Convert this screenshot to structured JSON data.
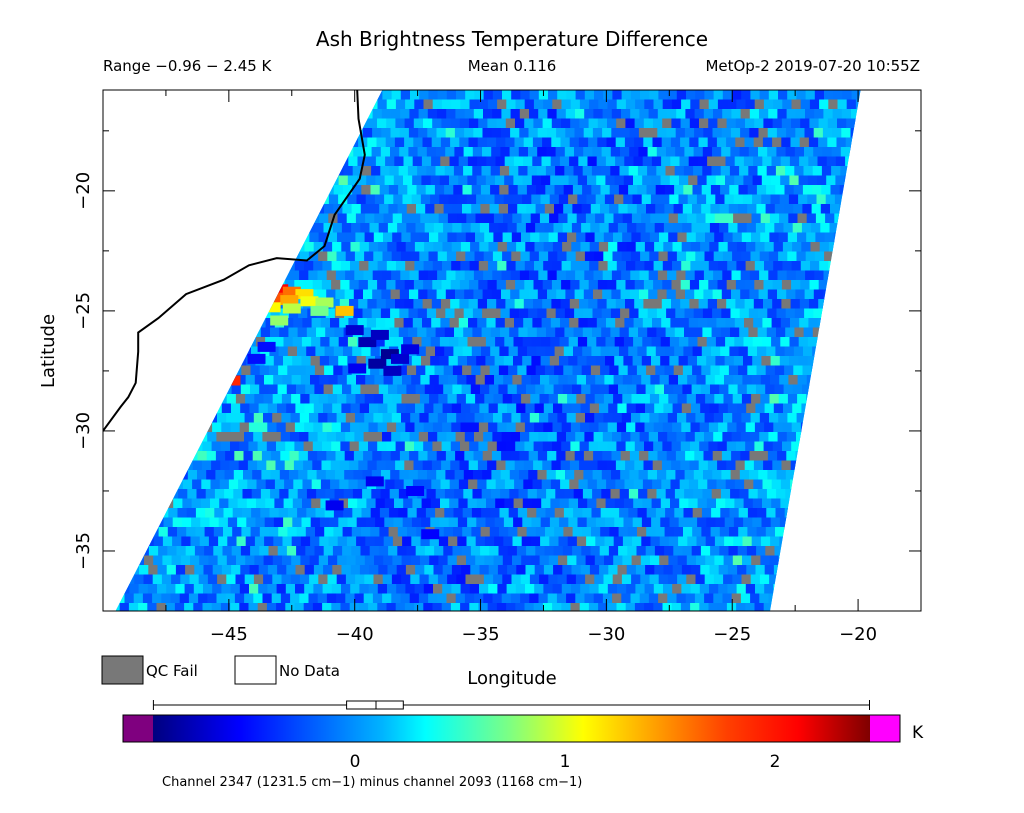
{
  "chart_data": {
    "type": "heatmap",
    "title": "Ash Brightness Temperature Difference",
    "subtitle": {
      "range": "Range −0.96 − 2.45 K",
      "mean": "Mean 0.116",
      "satellite": "MetOp-2 2019-07-20 10:55Z"
    },
    "xlabel": "Longitude",
    "ylabel": "Latitude",
    "xlim": [
      -50,
      -17.5
    ],
    "ylim": [
      -37.5,
      -15.8
    ],
    "x_ticks": [
      -45,
      -40,
      -35,
      -30,
      -25,
      -20
    ],
    "x_tick_labels": [
      "−45",
      "−40",
      "−35",
      "−30",
      "−25",
      "−20"
    ],
    "y_ticks": [
      -20,
      -25,
      -30,
      -35
    ],
    "y_tick_labels": [
      "−20",
      "−25",
      "−30",
      "−35"
    ],
    "swath": {
      "top_lon": [
        -38.9,
        -19.9
      ],
      "bottom_lon": [
        -49.5,
        -23.5
      ]
    },
    "value_range": [
      -0.96,
      2.45
    ],
    "mean": 0.116,
    "units": "K",
    "box_summary": [
      -0.04,
      0.1,
      0.23
    ],
    "whisker_range": [
      -0.96,
      2.45
    ],
    "colorbar": {
      "ticks": [
        0,
        1,
        2
      ],
      "tick_labels": [
        "0",
        "1",
        "2"
      ],
      "unit_label": "K",
      "caption": "Channel 2347 (1231.5 cm−1) minus channel 2093 (1168 cm−1)"
    },
    "coastline": [
      [
        -39.9,
        -15.8
      ],
      [
        -39.85,
        -17.0
      ],
      [
        -39.6,
        -18.5
      ],
      [
        -39.8,
        -19.5
      ],
      [
        -40.8,
        -21.0
      ],
      [
        -41.2,
        -22.3
      ],
      [
        -41.9,
        -22.9
      ],
      [
        -43.1,
        -22.8
      ],
      [
        -44.2,
        -23.1
      ],
      [
        -45.2,
        -23.7
      ],
      [
        -46.7,
        -24.3
      ],
      [
        -47.8,
        -25.3
      ],
      [
        -48.6,
        -25.9
      ],
      [
        -48.6,
        -26.7
      ],
      [
        -48.7,
        -28.0
      ],
      [
        -49.0,
        -28.6
      ],
      [
        -49.3,
        -29.0
      ],
      [
        -50.0,
        -30.0
      ],
      [
        -50.5,
        -30.6
      ]
    ],
    "anomalies": [
      {
        "lon": -43.5,
        "lat": -23.95,
        "value": 2.3
      },
      {
        "lon": -43.0,
        "lat": -24.1,
        "value": 2.1
      },
      {
        "lon": -42.5,
        "lat": -24.2,
        "value": 1.6
      },
      {
        "lon": -42.0,
        "lat": -24.3,
        "value": 1.2
      },
      {
        "lon": -43.2,
        "lat": -24.45,
        "value": 1.7
      },
      {
        "lon": -42.6,
        "lat": -24.55,
        "value": 1.4
      },
      {
        "lon": -41.8,
        "lat": -24.6,
        "value": 1.05
      },
      {
        "lon": -41.2,
        "lat": -24.65,
        "value": 0.85
      },
      {
        "lon": -44.0,
        "lat": -24.8,
        "value": 1.3
      },
      {
        "lon": -43.3,
        "lat": -24.85,
        "value": 1.1
      },
      {
        "lon": -42.5,
        "lat": -24.9,
        "value": 0.9
      },
      {
        "lon": -41.4,
        "lat": -25.0,
        "value": 0.7
      },
      {
        "lon": -40.4,
        "lat": -25.0,
        "value": 1.3
      },
      {
        "lon": -43.0,
        "lat": -25.4,
        "value": 0.8
      },
      {
        "lon": -44.9,
        "lat": -27.9,
        "value": 1.9
      },
      {
        "lon": -40.0,
        "lat": -25.8,
        "value": -0.7
      },
      {
        "lon": -39.5,
        "lat": -26.3,
        "value": -0.8
      },
      {
        "lon": -39.0,
        "lat": -26.0,
        "value": -0.75
      },
      {
        "lon": -38.6,
        "lat": -26.8,
        "value": -0.9
      },
      {
        "lon": -39.1,
        "lat": -27.2,
        "value": -0.85
      },
      {
        "lon": -38.2,
        "lat": -27.0,
        "value": -0.7
      },
      {
        "lon": -37.8,
        "lat": -26.6,
        "value": -0.65
      },
      {
        "lon": -39.9,
        "lat": -27.4,
        "value": -0.6
      },
      {
        "lon": -38.5,
        "lat": -27.5,
        "value": -0.75
      },
      {
        "lon": -44.5,
        "lat": -26.4,
        "value": -0.55
      },
      {
        "lon": -43.9,
        "lat": -27.0,
        "value": -0.5
      },
      {
        "lon": -43.5,
        "lat": -26.5,
        "value": -0.5
      },
      {
        "lon": -39.2,
        "lat": -32.1,
        "value": -0.6
      },
      {
        "lon": -37.6,
        "lat": -32.5,
        "value": -0.55
      },
      {
        "lon": -40.8,
        "lat": -33.1,
        "value": -0.6
      },
      {
        "lon": -37.0,
        "lat": -34.3,
        "value": -0.55
      }
    ],
    "legend": [
      {
        "label": "QC Fail",
        "color": "#787878"
      },
      {
        "label": "No Data",
        "color": "#ffffff"
      }
    ],
    "colors": {
      "qc_fail": "#787878",
      "no_data": "#ffffff",
      "underflow": "#7f007f",
      "overflow": "#ff00ff",
      "coastline": "#000000"
    }
  }
}
